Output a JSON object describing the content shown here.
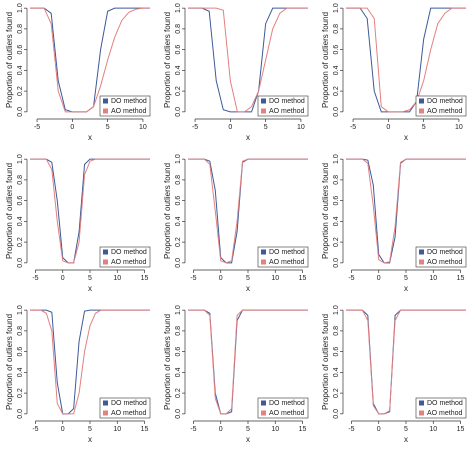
{
  "chart_data": [
    {
      "type": "line",
      "xlabel": "x",
      "ylabel": "Proportion of outliers found",
      "xlim": [
        -6,
        11
      ],
      "ylim": [
        -0.04,
        1.04
      ],
      "xticks": [
        -5,
        0,
        5,
        10
      ],
      "yticks": [
        {
          "value": 0,
          "label": "0.0"
        },
        {
          "value": 0.2,
          "label": "0.2"
        },
        {
          "value": 0.4,
          "label": "0.4"
        },
        {
          "value": 0.6,
          "label": "0.6"
        },
        {
          "value": 0.8,
          "label": "0.8"
        },
        {
          "value": 1,
          "label": "1.0"
        }
      ],
      "legend": "lower right",
      "x": [
        -6,
        -5,
        -4,
        -3,
        -2,
        -1,
        0,
        1,
        2,
        3,
        4,
        5,
        6,
        7,
        8,
        9,
        10,
        11
      ],
      "series": [
        {
          "name": "DO method",
          "color": "#3d5a99",
          "values": [
            1,
            1,
            1,
            0.95,
            0.3,
            0.02,
            0,
            0,
            0,
            0.05,
            0.6,
            0.97,
            1,
            1,
            1,
            1,
            1,
            1
          ]
        },
        {
          "name": "AO method",
          "color": "#e38080",
          "values": [
            1,
            1,
            1,
            0.85,
            0.2,
            0,
            0,
            0,
            0,
            0.05,
            0.25,
            0.5,
            0.72,
            0.88,
            0.96,
            0.99,
            1,
            1
          ]
        }
      ]
    },
    {
      "type": "line",
      "xlabel": "x",
      "ylabel": "Proportion of outliers found",
      "xlim": [
        -6,
        11
      ],
      "ylim": [
        -0.04,
        1.04
      ],
      "xticks": [
        -5,
        0,
        5,
        10
      ],
      "yticks": [
        {
          "value": 0,
          "label": "0.0"
        },
        {
          "value": 0.2,
          "label": "0.2"
        },
        {
          "value": 0.4,
          "label": "0.4"
        },
        {
          "value": 0.6,
          "label": "0.6"
        },
        {
          "value": 0.8,
          "label": "0.8"
        },
        {
          "value": 1,
          "label": "1.0"
        }
      ],
      "legend": "lower right",
      "x": [
        -6,
        -5,
        -4,
        -3,
        -2,
        -1,
        0,
        1,
        2,
        3,
        4,
        5,
        6,
        7,
        8,
        9,
        10,
        11
      ],
      "series": [
        {
          "name": "DO method",
          "color": "#3d5a99",
          "values": [
            1,
            1,
            1,
            0.97,
            0.3,
            0.02,
            0,
            0,
            0,
            0,
            0.2,
            0.85,
            1,
            1,
            1,
            1,
            1,
            1
          ]
        },
        {
          "name": "AO method",
          "color": "#e38080",
          "values": [
            1,
            1,
            1,
            1,
            1,
            0.98,
            0.3,
            0,
            0,
            0.05,
            0.2,
            0.5,
            0.8,
            0.95,
            1,
            1,
            1,
            1
          ]
        }
      ]
    },
    {
      "type": "line",
      "xlabel": "x",
      "ylabel": "Proportion of outliers found",
      "xlim": [
        -6,
        11
      ],
      "ylim": [
        -0.04,
        1.04
      ],
      "xticks": [
        -5,
        0,
        5,
        10
      ],
      "yticks": [
        {
          "value": 0,
          "label": "0.0"
        },
        {
          "value": 0.2,
          "label": "0.2"
        },
        {
          "value": 0.4,
          "label": "0.4"
        },
        {
          "value": 0.6,
          "label": "0.6"
        },
        {
          "value": 0.8,
          "label": "0.8"
        },
        {
          "value": 1,
          "label": "1.0"
        }
      ],
      "legend": "lower right",
      "x": [
        -6,
        -5,
        -4,
        -3,
        -2,
        -1,
        0,
        1,
        2,
        3,
        4,
        5,
        6,
        7,
        8,
        9,
        10,
        11
      ],
      "series": [
        {
          "name": "DO method",
          "color": "#3d5a99",
          "values": [
            1,
            1,
            1,
            0.9,
            0.2,
            0,
            0,
            0,
            0,
            0,
            0.1,
            0.7,
            1,
            1,
            1,
            1,
            1,
            1
          ]
        },
        {
          "name": "AO method",
          "color": "#e38080",
          "values": [
            1,
            1,
            1,
            1,
            0.9,
            0.05,
            0,
            0,
            0,
            0.02,
            0.1,
            0.3,
            0.6,
            0.85,
            0.95,
            1,
            1,
            1
          ]
        }
      ]
    },
    {
      "type": "line",
      "xlabel": "x",
      "ylabel": "Proportion of outliers found",
      "xlim": [
        -6,
        16
      ],
      "ylim": [
        -0.04,
        1.04
      ],
      "xticks": [
        -5,
        0,
        5,
        10,
        15
      ],
      "yticks": [
        {
          "value": 0,
          "label": "0.0"
        },
        {
          "value": 0.2,
          "label": "0.2"
        },
        {
          "value": 0.4,
          "label": "0.4"
        },
        {
          "value": 0.6,
          "label": "0.6"
        },
        {
          "value": 0.8,
          "label": "0.8"
        },
        {
          "value": 1,
          "label": "1.0"
        }
      ],
      "legend": "lower right",
      "x": [
        -6,
        -5,
        -4,
        -3,
        -2,
        -1,
        0,
        1,
        2,
        3,
        4,
        5,
        6,
        7,
        8,
        9,
        10,
        11,
        12,
        13,
        14,
        15,
        16
      ],
      "series": [
        {
          "name": "DO method",
          "color": "#3d5a99",
          "values": [
            1,
            1,
            1,
            1,
            0.97,
            0.6,
            0.05,
            0,
            0,
            0.3,
            0.95,
            1,
            1,
            1,
            1,
            1,
            1,
            1,
            1,
            1,
            1,
            1,
            1
          ]
        },
        {
          "name": "AO method",
          "color": "#e38080",
          "values": [
            1,
            1,
            1,
            1,
            0.9,
            0.4,
            0.02,
            0,
            0,
            0.2,
            0.85,
            0.98,
            1,
            1,
            1,
            1,
            1,
            1,
            1,
            1,
            1,
            1,
            1
          ]
        }
      ]
    },
    {
      "type": "line",
      "xlabel": "x",
      "ylabel": "Proportion of outliers found",
      "xlim": [
        -6,
        16
      ],
      "ylim": [
        -0.04,
        1.04
      ],
      "xticks": [
        -5,
        0,
        5,
        10,
        15
      ],
      "yticks": [
        {
          "value": 0,
          "label": "0.0"
        },
        {
          "value": 0.2,
          "label": "0.2"
        },
        {
          "value": 0.4,
          "label": "0.4"
        },
        {
          "value": 0.6,
          "label": "0.6"
        },
        {
          "value": 0.8,
          "label": "0.8"
        },
        {
          "value": 1,
          "label": "1.0"
        }
      ],
      "legend": "lower right",
      "x": [
        -6,
        -5,
        -4,
        -3,
        -2,
        -1,
        0,
        1,
        2,
        3,
        4,
        5,
        6,
        7,
        8,
        9,
        10,
        11,
        12,
        13,
        14,
        15,
        16
      ],
      "series": [
        {
          "name": "DO method",
          "color": "#3d5a99",
          "values": [
            1,
            1,
            1,
            1,
            0.98,
            0.7,
            0.05,
            0,
            0,
            0.3,
            0.97,
            1,
            1,
            1,
            1,
            1,
            1,
            1,
            1,
            1,
            1,
            1,
            1
          ]
        },
        {
          "name": "AO method",
          "color": "#e38080",
          "values": [
            1,
            1,
            1,
            1,
            0.95,
            0.5,
            0.02,
            0,
            0.02,
            0.4,
            0.98,
            1,
            1,
            1,
            1,
            1,
            1,
            1,
            1,
            1,
            1,
            1,
            1
          ]
        }
      ]
    },
    {
      "type": "line",
      "xlabel": "x",
      "ylabel": "Proportion of outliers found",
      "xlim": [
        -6,
        16
      ],
      "ylim": [
        -0.04,
        1.04
      ],
      "xticks": [
        -5,
        0,
        5,
        10,
        15
      ],
      "yticks": [
        {
          "value": 0,
          "label": "0.0"
        },
        {
          "value": 0.2,
          "label": "0.2"
        },
        {
          "value": 0.4,
          "label": "0.4"
        },
        {
          "value": 0.6,
          "label": "0.6"
        },
        {
          "value": 0.8,
          "label": "0.8"
        },
        {
          "value": 1,
          "label": "1.0"
        }
      ],
      "legend": "lower right",
      "x": [
        -6,
        -5,
        -4,
        -3,
        -2,
        -1,
        0,
        1,
        2,
        3,
        4,
        5,
        6,
        7,
        8,
        9,
        10,
        11,
        12,
        13,
        14,
        15,
        16
      ],
      "series": [
        {
          "name": "DO method",
          "color": "#3d5a99",
          "values": [
            1,
            1,
            1,
            1,
            0.99,
            0.75,
            0.08,
            0,
            0,
            0.25,
            0.96,
            1,
            1,
            1,
            1,
            1,
            1,
            1,
            1,
            1,
            1,
            1,
            1
          ]
        },
        {
          "name": "AO method",
          "color": "#e38080",
          "values": [
            1,
            1,
            1,
            1,
            0.96,
            0.55,
            0.03,
            0,
            0.01,
            0.35,
            0.97,
            1,
            1,
            1,
            1,
            1,
            1,
            1,
            1,
            1,
            1,
            1,
            1
          ]
        }
      ]
    },
    {
      "type": "line",
      "xlabel": "x",
      "ylabel": "Proportion of outliers found",
      "xlim": [
        -6,
        16
      ],
      "ylim": [
        -0.04,
        1.04
      ],
      "xticks": [
        -5,
        0,
        5,
        10,
        15
      ],
      "yticks": [
        {
          "value": 0,
          "label": "0.0"
        },
        {
          "value": 0.2,
          "label": "0.2"
        },
        {
          "value": 0.4,
          "label": "0.4"
        },
        {
          "value": 0.6,
          "label": "0.6"
        },
        {
          "value": 0.8,
          "label": "0.8"
        },
        {
          "value": 1,
          "label": "1.0"
        }
      ],
      "legend": "lower right",
      "x": [
        -6,
        -5,
        -4,
        -3,
        -2,
        -1,
        0,
        1,
        2,
        3,
        4,
        5,
        6,
        7,
        8,
        9,
        10,
        11,
        12,
        13,
        14,
        15,
        16
      ],
      "series": [
        {
          "name": "DO method",
          "color": "#3d5a99",
          "values": [
            1,
            1,
            1,
            1,
            0.98,
            0.3,
            0,
            0,
            0.05,
            0.7,
            0.99,
            1,
            1,
            1,
            1,
            1,
            1,
            1,
            1,
            1,
            1,
            1,
            1
          ]
        },
        {
          "name": "AO method",
          "color": "#e38080",
          "values": [
            1,
            1,
            1,
            0.97,
            0.8,
            0.1,
            0,
            0,
            0,
            0.2,
            0.6,
            0.85,
            0.97,
            1,
            1,
            1,
            1,
            1,
            1,
            1,
            1,
            1,
            1
          ]
        }
      ]
    },
    {
      "type": "line",
      "xlabel": "x",
      "ylabel": "Proportion of outliers found",
      "xlim": [
        -6,
        16
      ],
      "ylim": [
        -0.04,
        1.04
      ],
      "xticks": [
        -5,
        0,
        5,
        10,
        15
      ],
      "yticks": [
        {
          "value": 0,
          "label": "0.0"
        },
        {
          "value": 0.2,
          "label": "0.2"
        },
        {
          "value": 0.4,
          "label": "0.4"
        },
        {
          "value": 0.6,
          "label": "0.6"
        },
        {
          "value": 0.8,
          "label": "0.8"
        },
        {
          "value": 1,
          "label": "1.0"
        }
      ],
      "legend": "lower right",
      "x": [
        -6,
        -5,
        -4,
        -3,
        -2,
        -1,
        0,
        1,
        2,
        3,
        4,
        5,
        6,
        7,
        8,
        9,
        10,
        11,
        12,
        13,
        14,
        15,
        16
      ],
      "series": [
        {
          "name": "DO method",
          "color": "#3d5a99",
          "values": [
            1,
            1,
            1,
            1,
            0.97,
            0.2,
            0,
            0,
            0.02,
            0.9,
            1,
            1,
            1,
            1,
            1,
            1,
            1,
            1,
            1,
            1,
            1,
            1,
            1
          ]
        },
        {
          "name": "AO method",
          "color": "#e38080",
          "values": [
            1,
            1,
            1,
            1,
            0.95,
            0.15,
            0,
            0,
            0.05,
            0.95,
            1,
            1,
            1,
            1,
            1,
            1,
            1,
            1,
            1,
            1,
            1,
            1,
            1
          ]
        }
      ]
    },
    {
      "type": "line",
      "xlabel": "x",
      "ylabel": "Proportion of outliers found",
      "xlim": [
        -6,
        16
      ],
      "ylim": [
        -0.04,
        1.04
      ],
      "xticks": [
        -5,
        0,
        5,
        10,
        15
      ],
      "yticks": [
        {
          "value": 0,
          "label": "0.0"
        },
        {
          "value": 0.2,
          "label": "0.2"
        },
        {
          "value": 0.4,
          "label": "0.4"
        },
        {
          "value": 0.6,
          "label": "0.6"
        },
        {
          "value": 0.8,
          "label": "0.8"
        },
        {
          "value": 1,
          "label": "1.0"
        }
      ],
      "legend": "lower right",
      "x": [
        -6,
        -5,
        -4,
        -3,
        -2,
        -1,
        0,
        1,
        2,
        3,
        4,
        5,
        6,
        7,
        8,
        9,
        10,
        11,
        12,
        13,
        14,
        15,
        16
      ],
      "series": [
        {
          "name": "DO method",
          "color": "#3d5a99",
          "values": [
            1,
            1,
            1,
            1,
            0.95,
            0.1,
            0,
            0,
            0.02,
            0.95,
            1,
            1,
            1,
            1,
            1,
            1,
            1,
            1,
            1,
            1,
            1,
            1,
            1
          ]
        },
        {
          "name": "AO method",
          "color": "#e38080",
          "values": [
            1,
            1,
            1,
            1,
            0.9,
            0.08,
            0,
            0,
            0.03,
            0.9,
            1,
            1,
            1,
            1,
            1,
            1,
            1,
            1,
            1,
            1,
            1,
            1,
            1
          ]
        }
      ]
    }
  ]
}
